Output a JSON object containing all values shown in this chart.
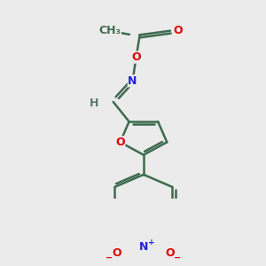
{
  "background_color": "#ebebeb",
  "bond_color": "#3d6b4f",
  "atom_colors": {
    "O": "#e00000",
    "N": "#2020dd",
    "H": "#5a7a6a",
    "C": "#3d6b4f"
  },
  "bond_width": 1.8,
  "figsize": [
    3.0,
    3.0
  ],
  "dpi": 100
}
